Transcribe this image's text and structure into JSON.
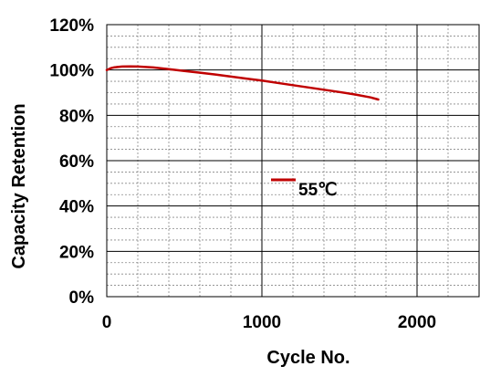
{
  "chart_data": {
    "type": "line",
    "xlabel": "Cycle No.",
    "ylabel": "Capacity Retention",
    "xlim": [
      0,
      2400
    ],
    "ylim": [
      0,
      120
    ],
    "x_ticks": [
      0,
      1000,
      2000
    ],
    "x_tick_labels": [
      "0",
      "1000",
      "2000"
    ],
    "y_ticks": [
      0,
      20,
      40,
      60,
      80,
      100,
      120
    ],
    "y_tick_labels": [
      "0%",
      "20%",
      "40%",
      "60%",
      "80%",
      "100%",
      "120%"
    ],
    "x_minor_step": 200,
    "y_minor_step": 5,
    "grid": true,
    "legend_position": "center",
    "colors": {
      "series": "#c00000",
      "grid_major": "#000000",
      "grid_minor": "#888888"
    },
    "series": [
      {
        "name": "55℃",
        "x": [
          0,
          25,
          50,
          100,
          150,
          200,
          250,
          300,
          400,
          500,
          600,
          700,
          800,
          900,
          1000,
          1100,
          1200,
          1300,
          1400,
          1500,
          1600,
          1700,
          1750
        ],
        "y": [
          100.0,
          100.8,
          101.2,
          101.5,
          101.6,
          101.5,
          101.3,
          101.1,
          100.4,
          99.6,
          98.8,
          98.0,
          97.1,
          96.2,
          95.3,
          94.3,
          93.3,
          92.3,
          91.3,
          90.3,
          89.2,
          87.9,
          87.0
        ]
      }
    ]
  }
}
